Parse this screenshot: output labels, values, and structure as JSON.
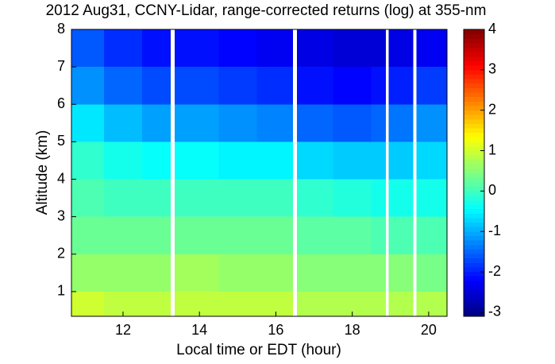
{
  "chart_data": {
    "type": "heatmap",
    "title": "2012 Aug31, CCNY-Lidar, range-corrected returns (log) at 355-nm",
    "x_label": "Local time or EDT (hour)",
    "y_label": "Altitude (km)",
    "x": [
      10.65,
      11.5,
      12.5,
      13.25,
      13.35,
      14.5,
      15.5,
      16.45,
      16.55,
      17.5,
      18.5,
      18.88,
      18.95,
      19.6,
      19.68,
      20.48
    ],
    "y": [
      0.34,
      1,
      2,
      3,
      4,
      5,
      6,
      7,
      8
    ],
    "values": [
      [
        1.0,
        0.9,
        0.9,
        null,
        0.9,
        0.9,
        0.9,
        null,
        0.8,
        0.8,
        0.8,
        null,
        0.8,
        null,
        0.8
      ],
      [
        0.6,
        0.6,
        0.6,
        null,
        0.7,
        0.6,
        0.6,
        null,
        0.5,
        0.5,
        0.5,
        null,
        0.5,
        null,
        0.4
      ],
      [
        0.3,
        0.3,
        0.3,
        null,
        0.3,
        0.3,
        0.3,
        null,
        0.2,
        0.2,
        0.1,
        null,
        0.1,
        null,
        0.1
      ],
      [
        0.1,
        0.0,
        0.0,
        null,
        0.0,
        0.0,
        0.0,
        null,
        -0.1,
        -0.2,
        -0.3,
        null,
        -0.3,
        null,
        -0.3
      ],
      [
        -0.1,
        -0.3,
        -0.4,
        null,
        -0.4,
        -0.5,
        -0.5,
        null,
        -0.7,
        -0.8,
        -0.8,
        null,
        -0.8,
        null,
        -0.7
      ],
      [
        -0.6,
        -0.9,
        -1.1,
        null,
        -1.1,
        -1.2,
        -1.3,
        null,
        -1.5,
        -1.6,
        -1.5,
        null,
        -1.4,
        null,
        -1.2
      ],
      [
        -1.2,
        -1.5,
        -1.7,
        null,
        -1.7,
        -1.8,
        -1.9,
        null,
        -2.1,
        -2.2,
        -2.1,
        null,
        -2.0,
        null,
        -1.8
      ],
      [
        -1.6,
        -1.9,
        -2.1,
        null,
        -2.1,
        -2.2,
        -2.3,
        null,
        -2.4,
        -2.5,
        -2.5,
        null,
        -2.4,
        null,
        -2.3
      ]
    ],
    "xlim": [
      10.65,
      20.48
    ],
    "xticks": [
      12,
      14,
      16,
      18,
      20
    ],
    "ylim": [
      0.34,
      8
    ],
    "yticks": [
      1,
      2,
      3,
      4,
      5,
      6,
      7,
      8
    ],
    "zlim": [
      -3.1,
      4
    ],
    "zticks": [
      -3,
      -2,
      -1,
      0,
      1,
      2,
      3,
      4
    ],
    "colormap": "jet"
  }
}
